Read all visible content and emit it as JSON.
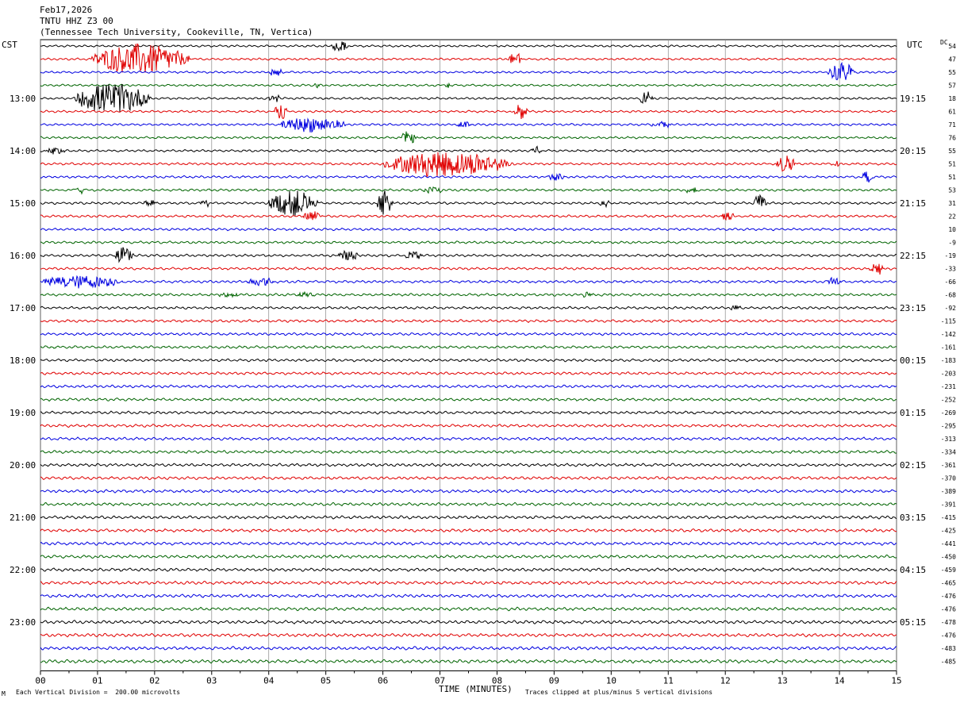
{
  "header": {
    "date": "Feb17,2026",
    "station": "TNTU HHZ Z3 00",
    "location": "(Tennessee Tech University, Cookeville, TN, Vertica)"
  },
  "labels": {
    "left_tz": "CST",
    "right_tz": "UTC",
    "dc_label": "DC",
    "xlabel": "TIME (MINUTES)",
    "scale_note": "Each Vertical Division =  200.00 microvolts",
    "clip_note": "Traces clipped at plus/minus 5 vertical divisions",
    "corner_mark": "M"
  },
  "colors": {
    "trace_cycle": [
      "#000000",
      "#e00000",
      "#0000e0",
      "#006400"
    ],
    "grid": "#888888"
  },
  "chart_data": {
    "type": "line",
    "title": "TNTU HHZ Z3 00",
    "xlabel": "TIME (MINUTES)",
    "xlim": [
      0,
      15
    ],
    "x_ticks": [
      "00",
      "01",
      "02",
      "03",
      "04",
      "05",
      "06",
      "07",
      "08",
      "09",
      "10",
      "11",
      "12",
      "13",
      "14",
      "15"
    ],
    "left_time_labels": [
      {
        "row": 4,
        "text": "13:00"
      },
      {
        "row": 8,
        "text": "14:00"
      },
      {
        "row": 12,
        "text": "15:00"
      },
      {
        "row": 16,
        "text": "16:00"
      },
      {
        "row": 20,
        "text": "17:00"
      },
      {
        "row": 24,
        "text": "18:00"
      },
      {
        "row": 28,
        "text": "19:00"
      },
      {
        "row": 32,
        "text": "20:00"
      },
      {
        "row": 36,
        "text": "21:00"
      },
      {
        "row": 40,
        "text": "22:00"
      },
      {
        "row": 44,
        "text": "23:00"
      }
    ],
    "right_time_labels": [
      {
        "row": 4,
        "text": "19:15"
      },
      {
        "row": 8,
        "text": "20:15"
      },
      {
        "row": 12,
        "text": "21:15"
      },
      {
        "row": 16,
        "text": "22:15"
      },
      {
        "row": 20,
        "text": "23:15"
      },
      {
        "row": 24,
        "text": "00:15"
      },
      {
        "row": 28,
        "text": "01:15"
      },
      {
        "row": 32,
        "text": "02:15"
      },
      {
        "row": 36,
        "text": "03:15"
      },
      {
        "row": 40,
        "text": "04:15"
      },
      {
        "row": 44,
        "text": "05:15"
      }
    ],
    "dc_offsets": [
      "54",
      "47",
      "55",
      "57",
      "18",
      "61",
      "71",
      "76",
      "55",
      "51",
      "51",
      "53",
      "31",
      "22",
      "10",
      "-9",
      "-19",
      "-33",
      "-66",
      "-68",
      "-92",
      "-115",
      "-142",
      "-161",
      "-183",
      "-203",
      "-231",
      "-252",
      "-269",
      "-295",
      "-313",
      "-334",
      "-361",
      "-370",
      "-389",
      "-391",
      "-415",
      "-425",
      "-441",
      "-450",
      "-459",
      "-465",
      "-476",
      "-476",
      "-478",
      "-476",
      "-483",
      "-485"
    ],
    "row_count": 48,
    "events": [
      {
        "row": 0,
        "start": 5.1,
        "end": 5.7,
        "amp": 2
      },
      {
        "row": 1,
        "start": 0.9,
        "end": 3.9,
        "amp": 6
      },
      {
        "row": 1,
        "start": 8.2,
        "end": 8.6,
        "amp": 3
      },
      {
        "row": 2,
        "start": 4.0,
        "end": 4.4,
        "amp": 2
      },
      {
        "row": 2,
        "start": 13.8,
        "end": 14.6,
        "amp": 4
      },
      {
        "row": 3,
        "start": 4.8,
        "end": 4.95,
        "amp": 1.5
      },
      {
        "row": 3,
        "start": 7.1,
        "end": 7.3,
        "amp": 1.5
      },
      {
        "row": 4,
        "start": 0.6,
        "end": 2.9,
        "amp": 6
      },
      {
        "row": 4,
        "start": 4.0,
        "end": 4.4,
        "amp": 2
      },
      {
        "row": 4,
        "start": 10.5,
        "end": 10.9,
        "amp": 3
      },
      {
        "row": 5,
        "start": 4.1,
        "end": 4.5,
        "amp": 3
      },
      {
        "row": 5,
        "start": 8.3,
        "end": 8.7,
        "amp": 4
      },
      {
        "row": 6,
        "start": 4.2,
        "end": 6.2,
        "amp": 3
      },
      {
        "row": 6,
        "start": 7.3,
        "end": 7.7,
        "amp": 1.5
      },
      {
        "row": 6,
        "start": 10.7,
        "end": 11.3,
        "amp": 1.5
      },
      {
        "row": 7,
        "start": 6.3,
        "end": 6.8,
        "amp": 2.5
      },
      {
        "row": 8,
        "start": 0.1,
        "end": 0.7,
        "amp": 1.5
      },
      {
        "row": 8,
        "start": 8.6,
        "end": 8.9,
        "amp": 2
      },
      {
        "row": 9,
        "start": 6.0,
        "end": 9.9,
        "amp": 5
      },
      {
        "row": 9,
        "start": 12.9,
        "end": 13.5,
        "amp": 4
      },
      {
        "row": 9,
        "start": 13.9,
        "end": 14.1,
        "amp": 1.5
      },
      {
        "row": 10,
        "start": 8.9,
        "end": 9.4,
        "amp": 1.5
      },
      {
        "row": 10,
        "start": 14.4,
        "end": 14.7,
        "amp": 2.5
      },
      {
        "row": 11,
        "start": 0.6,
        "end": 0.9,
        "amp": 1.5
      },
      {
        "row": 11,
        "start": 6.7,
        "end": 7.3,
        "amp": 1.5
      },
      {
        "row": 11,
        "start": 11.3,
        "end": 11.7,
        "amp": 1.5
      },
      {
        "row": 12,
        "start": 1.8,
        "end": 2.2,
        "amp": 1.5
      },
      {
        "row": 12,
        "start": 2.8,
        "end": 3.1,
        "amp": 1.5
      },
      {
        "row": 12,
        "start": 4.0,
        "end": 5.5,
        "amp": 5
      },
      {
        "row": 12,
        "start": 5.9,
        "end": 6.4,
        "amp": 5
      },
      {
        "row": 12,
        "start": 9.8,
        "end": 10.1,
        "amp": 1.5
      },
      {
        "row": 12,
        "start": 12.5,
        "end": 12.9,
        "amp": 3.5
      },
      {
        "row": 13,
        "start": 4.6,
        "end": 5.2,
        "amp": 2
      },
      {
        "row": 13,
        "start": 11.9,
        "end": 12.4,
        "amp": 1.5
      },
      {
        "row": 16,
        "start": 1.3,
        "end": 1.9,
        "amp": 3
      },
      {
        "row": 16,
        "start": 5.2,
        "end": 5.9,
        "amp": 2
      },
      {
        "row": 16,
        "start": 6.4,
        "end": 6.9,
        "amp": 1.5
      },
      {
        "row": 17,
        "start": 14.5,
        "end": 15.0,
        "amp": 2.5
      },
      {
        "row": 18,
        "start": 0.0,
        "end": 2.5,
        "amp": 2.5
      },
      {
        "row": 18,
        "start": 3.6,
        "end": 4.5,
        "amp": 1.5
      },
      {
        "row": 18,
        "start": 13.8,
        "end": 14.2,
        "amp": 1.5
      },
      {
        "row": 19,
        "start": 3.1,
        "end": 3.8,
        "amp": 1
      },
      {
        "row": 19,
        "start": 4.5,
        "end": 5.0,
        "amp": 1
      },
      {
        "row": 19,
        "start": 9.5,
        "end": 9.8,
        "amp": 1
      },
      {
        "row": 20,
        "start": 12.1,
        "end": 12.4,
        "amp": 1
      }
    ]
  }
}
